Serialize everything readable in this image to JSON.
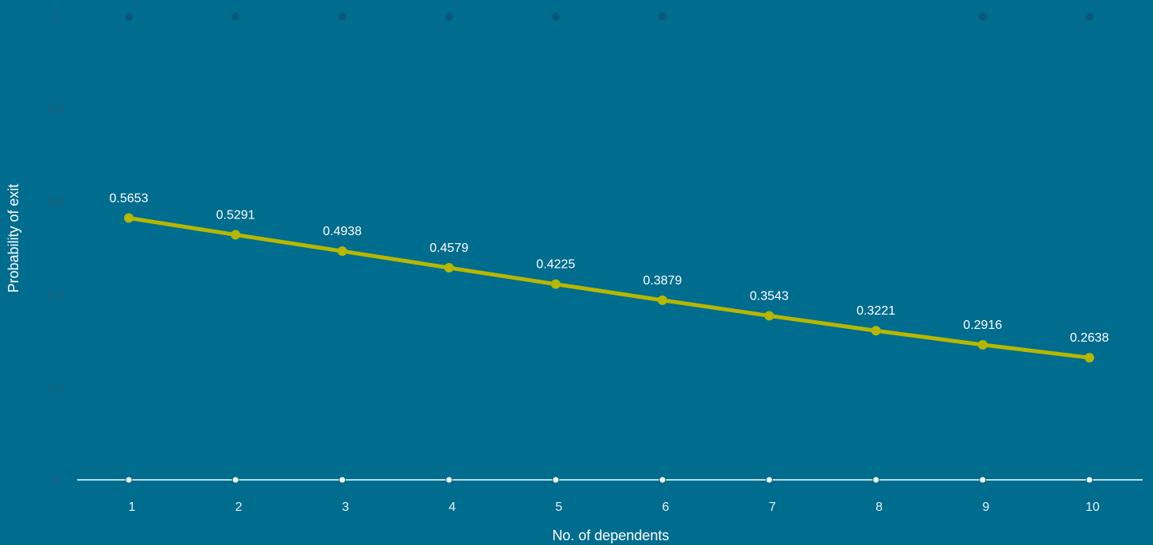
{
  "chart_data": {
    "type": "line",
    "title": "",
    "xlabel": "No. of dependents",
    "ylabel": "Probability of exit",
    "x": [
      1,
      2,
      3,
      4,
      5,
      6,
      7,
      8,
      9,
      10
    ],
    "series": [
      {
        "values": [
          0.5653,
          0.5291,
          0.4938,
          0.4579,
          0.4225,
          0.3879,
          0.3543,
          0.3221,
          0.2916,
          0.2638
        ],
        "labels": [
          "0.5653",
          "0.5291",
          "0.4938",
          "0.4579",
          "0.4225",
          "0.3879",
          "0.3543",
          "0.3221",
          "0.2916",
          "0.2638"
        ]
      }
    ],
    "y_ticks": [
      "0",
      "0.2",
      "0.4",
      "0.6",
      "0.8",
      "1"
    ],
    "ylim": [
      0,
      1
    ],
    "grid": false,
    "legend": "none",
    "colors": {
      "background": "#006c8e",
      "line": "#b5b700",
      "baseline": "#ffffff",
      "top_markers": "#0a5877",
      "y_tick_text": "#1f5f78"
    }
  }
}
